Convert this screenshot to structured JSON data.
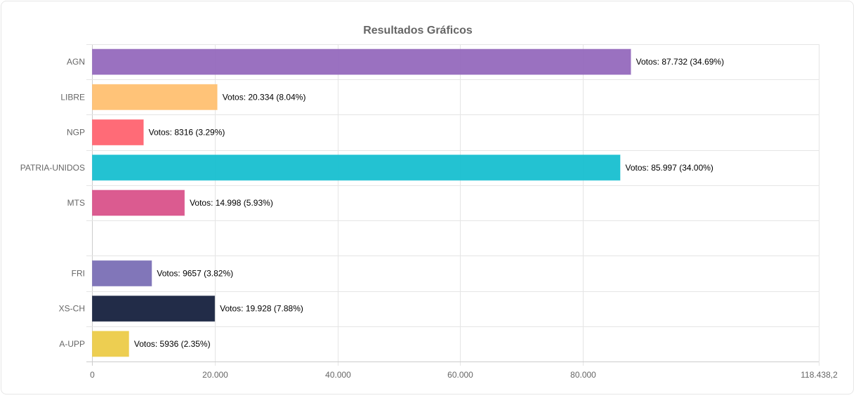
{
  "chart_data": {
    "type": "bar",
    "orientation": "horizontal",
    "title": "Resultados Gráficos",
    "categories": [
      "AGN",
      "LIBRE",
      "NGP",
      "PATRIA-UNIDOS",
      "MTS",
      "",
      "FRI",
      "XS-CH",
      "A-UPP"
    ],
    "values": [
      87732,
      20334,
      8316,
      85997,
      14998,
      0,
      9657,
      19928,
      5936
    ],
    "data_labels": [
      "Votos: 87.732 (34.69%)",
      "Votos: 20.334 (8.04%)",
      "Votos: 8316 (3.29%)",
      "Votos: 85.997 (34.00%)",
      "Votos: 14.998 (5.93%)",
      "",
      "Votos: 9657 (3.82%)",
      "Votos: 19.928 (7.88%)",
      "Votos: 5936 (2.35%)"
    ],
    "colors": [
      "#9569BD",
      "#FFC071",
      "#FF6370",
      "#17BFD0",
      "#D9528A",
      "#cccccc",
      "#7A6FB5",
      "#16213E",
      "#ECCB48"
    ],
    "xlim": [
      0,
      118438.2
    ],
    "x_ticks": [
      0,
      20000,
      40000,
      60000,
      80000,
      118438.2
    ],
    "x_tick_labels": [
      "0",
      "20.000",
      "40.000",
      "60.000",
      "80.000",
      "118.438,2"
    ],
    "grid": true,
    "legend": "none"
  }
}
